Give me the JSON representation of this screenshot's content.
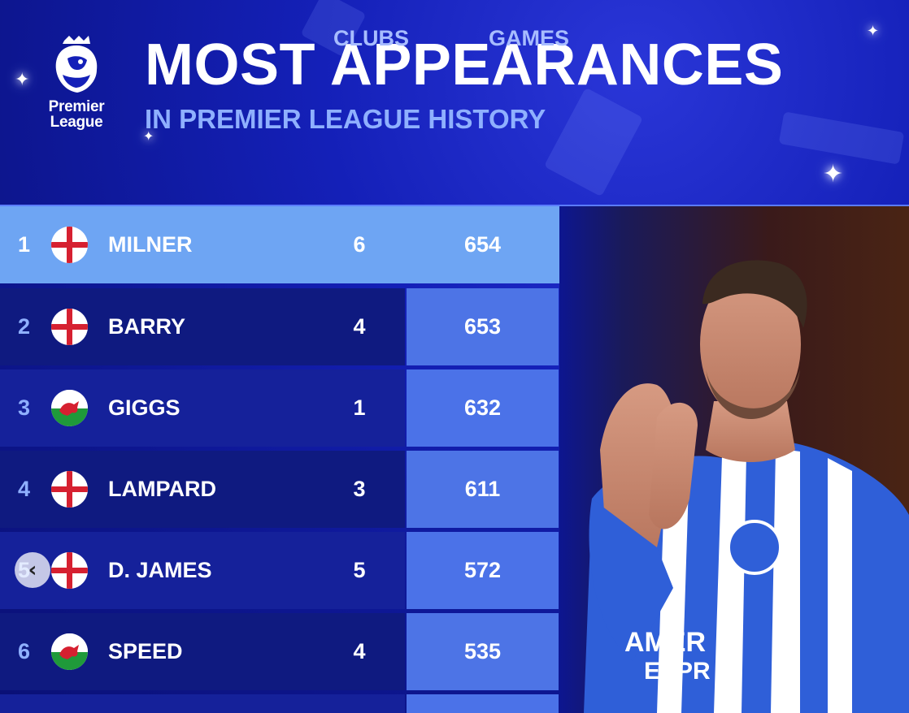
{
  "brand": {
    "logo_line1": "Premier",
    "logo_line2": "League"
  },
  "header": {
    "title": "MOST APPEARANCES",
    "subtitle": "IN PREMIER LEAGUE HISTORY"
  },
  "columns": {
    "clubs": "CLUBS",
    "games": "GAMES"
  },
  "rows": [
    {
      "rank": "1",
      "flag": "england-flag-icon",
      "name": "MILNER",
      "clubs": "6",
      "games": "654"
    },
    {
      "rank": "2",
      "flag": "england-flag-icon",
      "name": "BARRY",
      "clubs": "4",
      "games": "653"
    },
    {
      "rank": "3",
      "flag": "wales-flag-icon",
      "name": "GIGGS",
      "clubs": "1",
      "games": "632"
    },
    {
      "rank": "4",
      "flag": "england-flag-icon",
      "name": "LAMPARD",
      "clubs": "3",
      "games": "611"
    },
    {
      "rank": "5",
      "flag": "england-flag-icon",
      "name": "D. JAMES",
      "clubs": "5",
      "games": "572"
    },
    {
      "rank": "6",
      "flag": "wales-flag-icon",
      "name": "SPEED",
      "clubs": "4",
      "games": "535"
    }
  ],
  "photo": {
    "jersey_sponsor_line1": "AMER",
    "jersey_sponsor_line2": "EXPR"
  },
  "nav": {
    "prev_icon": "chevron-left-icon"
  },
  "colors": {
    "background": "#1420b8",
    "highlight_row": "#6ea5f3",
    "games_cell": "#4d74e6",
    "accent_text": "#8fb0ff"
  }
}
